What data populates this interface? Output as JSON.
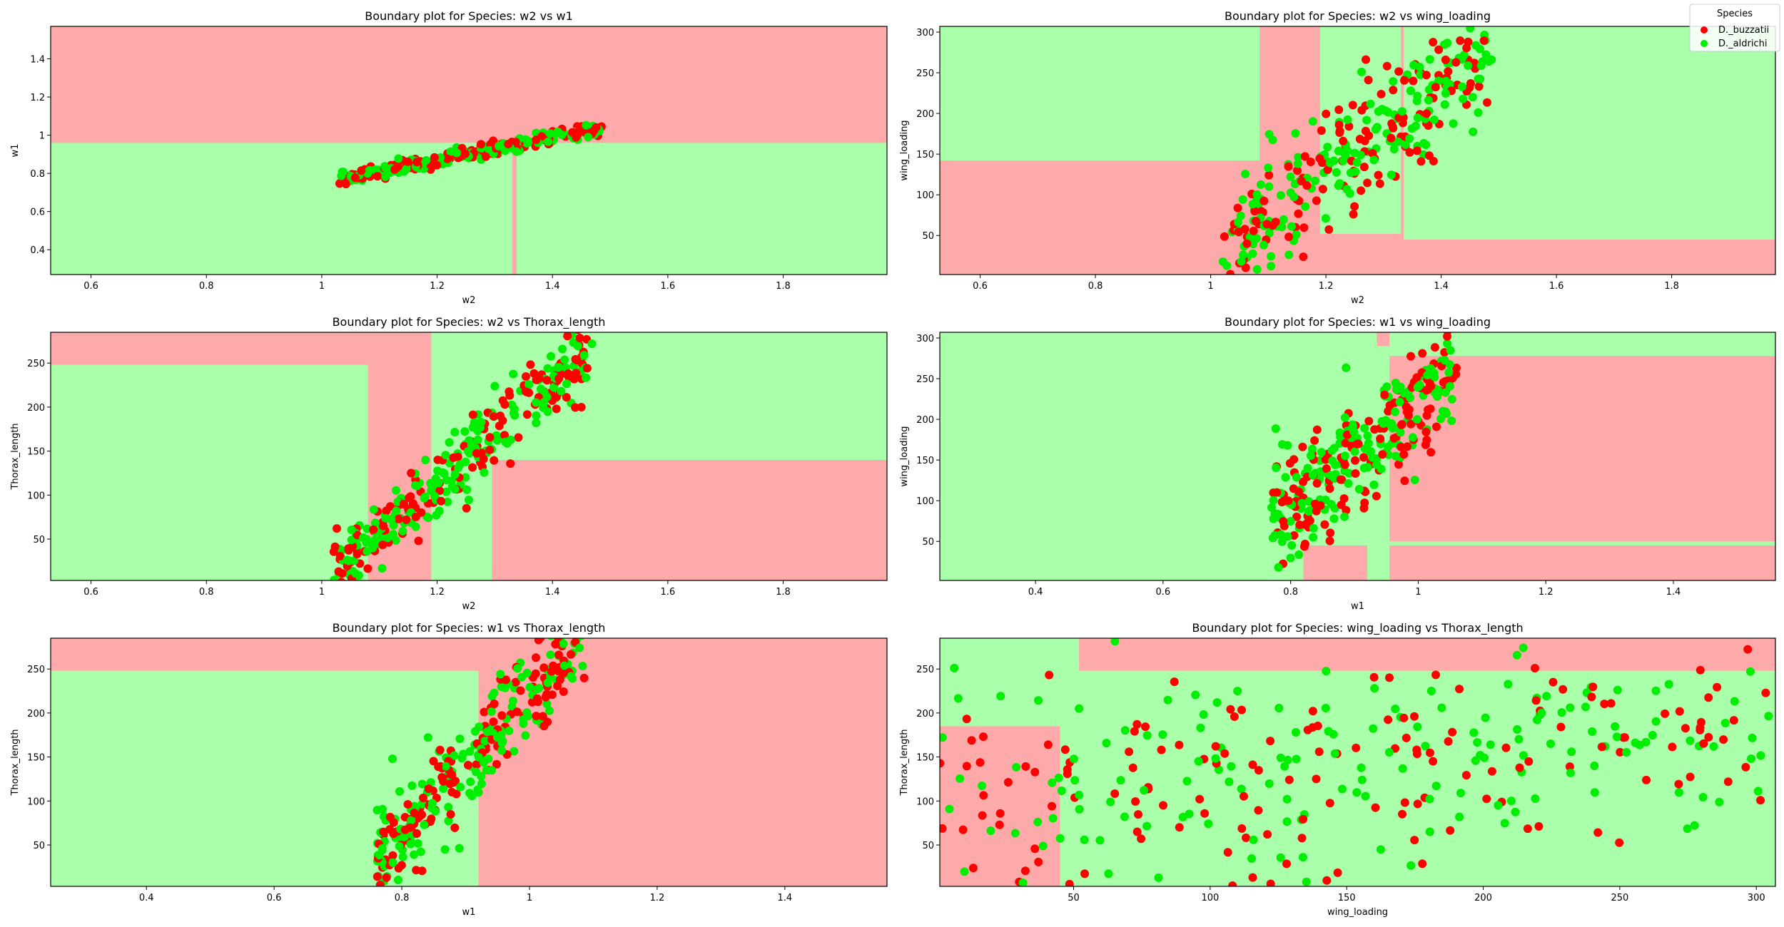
{
  "legend": {
    "title": "Species",
    "entries": [
      {
        "label": "D._buzzatii",
        "color": "#ff0000"
      },
      {
        "label": "D._aldrichi",
        "color": "#00ee00"
      }
    ],
    "position": "top-right"
  },
  "region_colors": {
    "buzzatii": "#ffaaaa",
    "aldrichi": "#aaffaa"
  },
  "chart_data": [
    {
      "type": "scatter",
      "title": "Boundary plot for Species: w2 vs w1",
      "xlabel": "w2",
      "ylabel": "w1",
      "xlim": [
        0.53,
        1.98
      ],
      "ylim": [
        0.27,
        1.57
      ],
      "xticks": [
        0.6,
        0.8,
        1.0,
        1.2,
        1.4,
        1.6,
        1.8
      ],
      "yticks": [
        0.4,
        0.6,
        0.8,
        1.0,
        1.2,
        1.4
      ],
      "grid": false,
      "regions": [
        {
          "class": "aldrichi",
          "x": [
            0.53,
            1.98
          ],
          "y": [
            0.27,
            0.96
          ]
        },
        {
          "class": "buzzatii",
          "x": [
            1.33,
            1.338
          ],
          "y": [
            0.27,
            0.96
          ]
        }
      ],
      "gen": {
        "x": [
          1.03,
          1.49
        ],
        "slope": 0.6,
        "intercept": 0.15,
        "noise": 0.018,
        "n": 280
      }
    },
    {
      "type": "scatter",
      "title": "Boundary plot for Species: w2 vs wing_loading",
      "xlabel": "w2",
      "ylabel": "wing_loading",
      "xlim": [
        0.53,
        1.98
      ],
      "ylim": [
        2,
        307
      ],
      "xticks": [
        0.6,
        0.8,
        1.0,
        1.2,
        1.4,
        1.6,
        1.8
      ],
      "yticks": [
        50,
        100,
        150,
        200,
        250,
        300
      ],
      "grid": false,
      "regions": [
        {
          "class": "aldrichi",
          "x": [
            0.53,
            1.085
          ],
          "y": [
            142,
            307
          ]
        },
        {
          "class": "aldrichi",
          "x": [
            1.19,
            1.98
          ],
          "y": [
            45,
            307
          ]
        },
        {
          "class": "buzzatii",
          "x": [
            1.19,
            1.33
          ],
          "y": [
            45,
            52
          ]
        },
        {
          "class": "buzzatii",
          "x": [
            1.33,
            1.335
          ],
          "y": [
            45,
            307
          ]
        }
      ],
      "gen": {
        "x": [
          1.02,
          1.49
        ],
        "slope": 520,
        "intercept": -500,
        "noise": 38,
        "n": 320
      }
    },
    {
      "type": "scatter",
      "title": "Boundary plot for Species: w2 vs Thorax_length",
      "xlabel": "w2",
      "ylabel": "Thorax_length",
      "xlim": [
        0.53,
        1.98
      ],
      "ylim": [
        3,
        285
      ],
      "xticks": [
        0.6,
        0.8,
        1.0,
        1.2,
        1.4,
        1.6,
        1.8
      ],
      "yticks": [
        50,
        100,
        150,
        200,
        250
      ],
      "grid": false,
      "regions": [
        {
          "class": "aldrichi",
          "x": [
            0.53,
            1.08
          ],
          "y": [
            3,
            248
          ]
        },
        {
          "class": "aldrichi",
          "x": [
            1.19,
            1.295
          ],
          "y": [
            3,
            248
          ]
        },
        {
          "class": "aldrichi",
          "x": [
            1.295,
            1.98
          ],
          "y": [
            140,
            285
          ]
        },
        {
          "class": "aldrichi",
          "x": [
            1.19,
            1.98
          ],
          "y": [
            140,
            285
          ]
        }
      ],
      "gen": {
        "x": [
          1.02,
          1.47
        ],
        "slope": 580,
        "intercept": -580,
        "noise": 22,
        "n": 330
      }
    },
    {
      "type": "scatter",
      "title": "Boundary plot for Species: w1 vs wing_loading",
      "xlabel": "w1",
      "ylabel": "wing_loading",
      "xlim": [
        0.25,
        1.56
      ],
      "ylim": [
        2,
        307
      ],
      "xticks": [
        0.4,
        0.6,
        0.8,
        1.0,
        1.2,
        1.4
      ],
      "yticks": [
        50,
        100,
        150,
        200,
        250,
        300
      ],
      "grid": false,
      "regions": [
        {
          "class": "aldrichi",
          "x": [
            0.25,
            0.935
          ],
          "y": [
            2,
            307
          ]
        },
        {
          "class": "aldrichi",
          "x": [
            0.935,
            0.955
          ],
          "y": [
            2,
            290
          ]
        },
        {
          "class": "aldrichi",
          "x": [
            0.955,
            1.56
          ],
          "y": [
            278,
            307
          ]
        },
        {
          "class": "aldrichi",
          "x": [
            0.92,
            1.56
          ],
          "y": [
            45,
            50
          ]
        },
        {
          "class": "buzzatii",
          "x": [
            0.82,
            0.92
          ],
          "y": [
            2,
            45
          ]
        },
        {
          "class": "aldrichi",
          "x": [
            0.25,
            0.82
          ],
          "y": [
            2,
            45
          ]
        }
      ],
      "gen": {
        "x": [
          0.77,
          1.06
        ],
        "slope": 650,
        "intercept": -430,
        "noise": 35,
        "n": 320
      }
    },
    {
      "type": "scatter",
      "title": "Boundary plot for Species: w1 vs Thorax_length",
      "xlabel": "w1",
      "ylabel": "Thorax_length",
      "xlim": [
        0.25,
        1.56
      ],
      "ylim": [
        3,
        285
      ],
      "xticks": [
        0.4,
        0.6,
        0.8,
        1.0,
        1.2,
        1.4
      ],
      "yticks": [
        50,
        100,
        150,
        200,
        250
      ],
      "grid": false,
      "regions": [
        {
          "class": "aldrichi",
          "x": [
            0.25,
            0.92
          ],
          "y": [
            3,
            248
          ]
        }
      ],
      "gen": {
        "x": [
          0.76,
          1.09
        ],
        "slope": 780,
        "intercept": -560,
        "noise": 28,
        "n": 330
      }
    },
    {
      "type": "scatter",
      "title": "Boundary plot for Species: wing_loading vs Thorax_length",
      "xlabel": "wing_loading",
      "ylabel": "Thorax_length",
      "xlim": [
        1,
        307
      ],
      "ylim": [
        3,
        285
      ],
      "xticks": [
        50,
        100,
        150,
        200,
        250,
        300
      ],
      "yticks": [
        50,
        100,
        150,
        200,
        250
      ],
      "grid": false,
      "regions": [
        {
          "class": "aldrichi",
          "x": [
            1,
            307
          ],
          "y": [
            3,
            285
          ]
        },
        {
          "class": "buzzatii",
          "x": [
            1,
            45
          ],
          "y": [
            3,
            185
          ]
        },
        {
          "class": "buzzatii",
          "x": [
            52,
            307
          ],
          "y": [
            248,
            285
          ]
        }
      ],
      "gen": {
        "x": [
          1,
          305
        ],
        "slope": 0.3,
        "intercept": 95,
        "noise": 65,
        "n": 330
      }
    }
  ]
}
